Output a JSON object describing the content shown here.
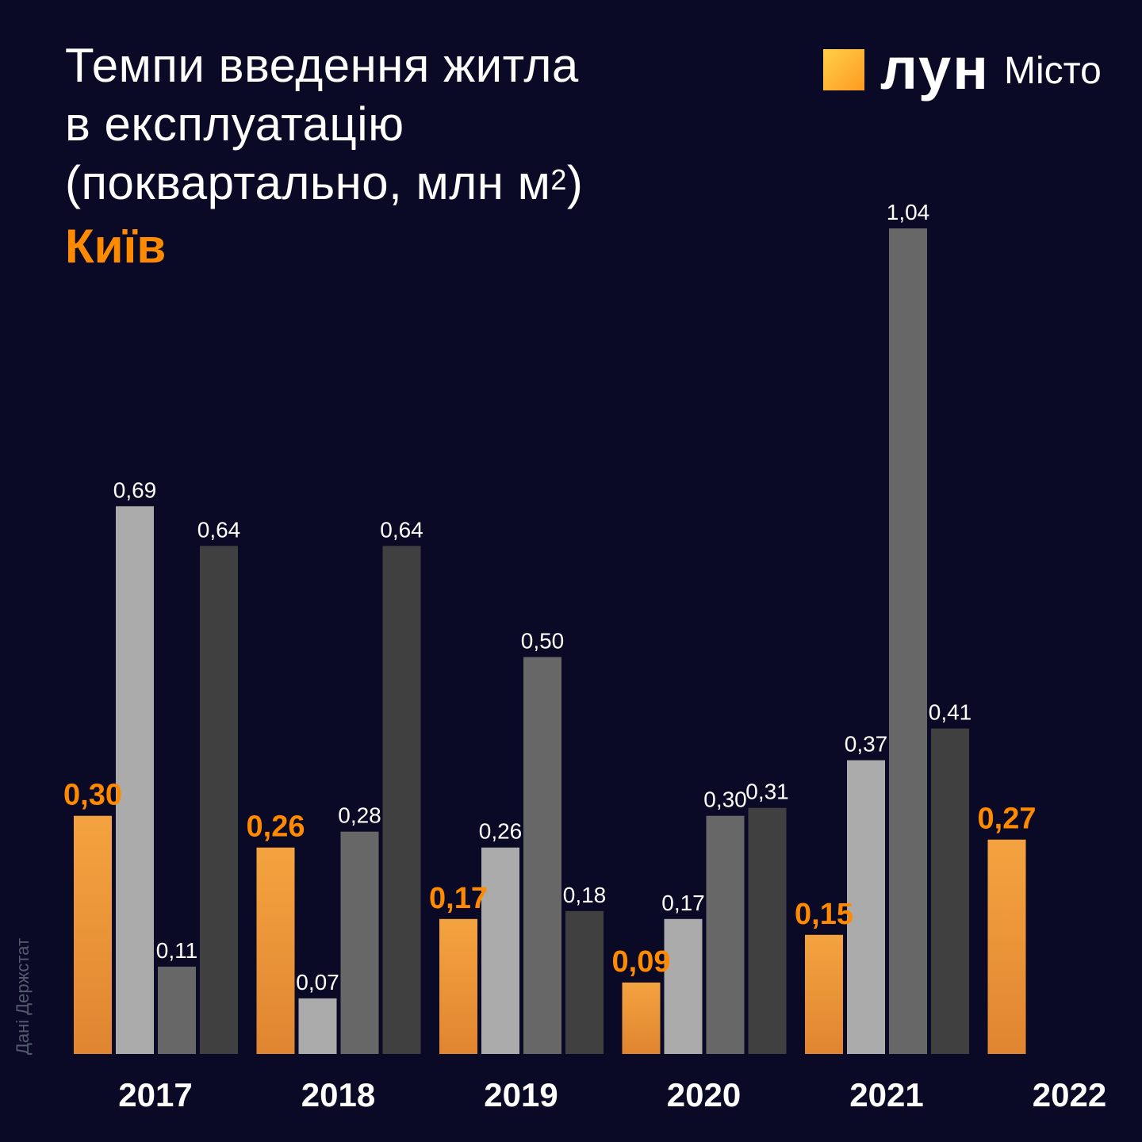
{
  "title": {
    "line1": "Темпи введення житла",
    "line2": "в експлуатацію",
    "line3_pre": "(поквартально, млн м",
    "line3_sup": "2",
    "line3_post": ")",
    "subtitle": "Київ"
  },
  "logo": {
    "word": "лун",
    "sub": "Місто"
  },
  "source": "Дані Держстат",
  "colors": {
    "background": "#0a0a26",
    "q1": "#ef9a3a",
    "q2": "#ababab",
    "q3": "#676767",
    "q4": "#404040",
    "highlight_label": "#ff8a00"
  },
  "chart_data": {
    "type": "bar",
    "categories": [
      "2017",
      "2018",
      "2019",
      "2020",
      "2021",
      "2022"
    ],
    "series": [
      {
        "values": [
          0.3,
          0.26,
          0.17,
          0.09,
          0.15,
          0.27
        ],
        "labels": [
          "0,30",
          "0,26",
          "0,17",
          "0,09",
          "0,15",
          "0,27"
        ]
      },
      {
        "values": [
          0.69,
          0.07,
          0.26,
          0.17,
          0.37,
          null
        ],
        "labels": [
          "0,69",
          "0,07",
          "0,26",
          "0,17",
          "0,37",
          null
        ]
      },
      {
        "values": [
          0.11,
          0.28,
          0.5,
          0.3,
          1.04,
          null
        ],
        "labels": [
          "0,11",
          "0,28",
          "0,50",
          "0,30",
          "1,04",
          null
        ]
      },
      {
        "values": [
          0.64,
          0.64,
          0.18,
          0.31,
          0.41,
          null
        ],
        "labels": [
          "0,64",
          "0,64",
          "0,18",
          "0,31",
          "0,41",
          null
        ]
      }
    ],
    "ylim": [
      0,
      1.05
    ],
    "grid": false,
    "legend": "none"
  }
}
